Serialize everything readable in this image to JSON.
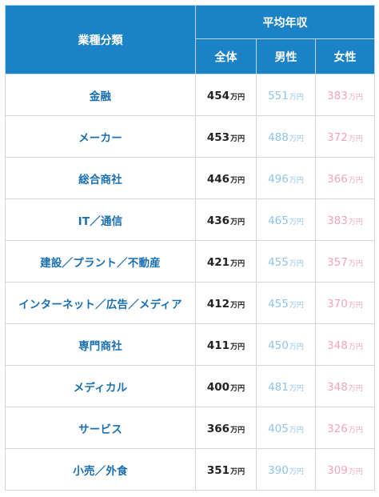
{
  "header": {
    "industry_label": "業種分類",
    "average_label": "平均年収",
    "overall_label": "全体",
    "male_label": "男性",
    "female_label": "女性"
  },
  "unit": "万円",
  "colors": {
    "header_bg": "#1b82c5",
    "industry_text": "#1a6fb0",
    "male_text": "#8fc3e8",
    "female_text": "#f2a3c2"
  },
  "rows": [
    {
      "industry": "金融",
      "overall": "454",
      "male": "551",
      "female": "383"
    },
    {
      "industry": "メーカー",
      "overall": "453",
      "male": "488",
      "female": "372"
    },
    {
      "industry": "総合商社",
      "overall": "446",
      "male": "496",
      "female": "366"
    },
    {
      "industry": "IT／通信",
      "overall": "436",
      "male": "465",
      "female": "383"
    },
    {
      "industry": "建設／プラント／不動産",
      "overall": "421",
      "male": "455",
      "female": "357"
    },
    {
      "industry": "インターネット／広告／メディア",
      "overall": "412",
      "male": "455",
      "female": "370"
    },
    {
      "industry": "専門商社",
      "overall": "411",
      "male": "450",
      "female": "348"
    },
    {
      "industry": "メディカル",
      "overall": "400",
      "male": "481",
      "female": "348"
    },
    {
      "industry": "サービス",
      "overall": "366",
      "male": "405",
      "female": "326"
    },
    {
      "industry": "小売／外食",
      "overall": "351",
      "male": "390",
      "female": "309"
    }
  ]
}
